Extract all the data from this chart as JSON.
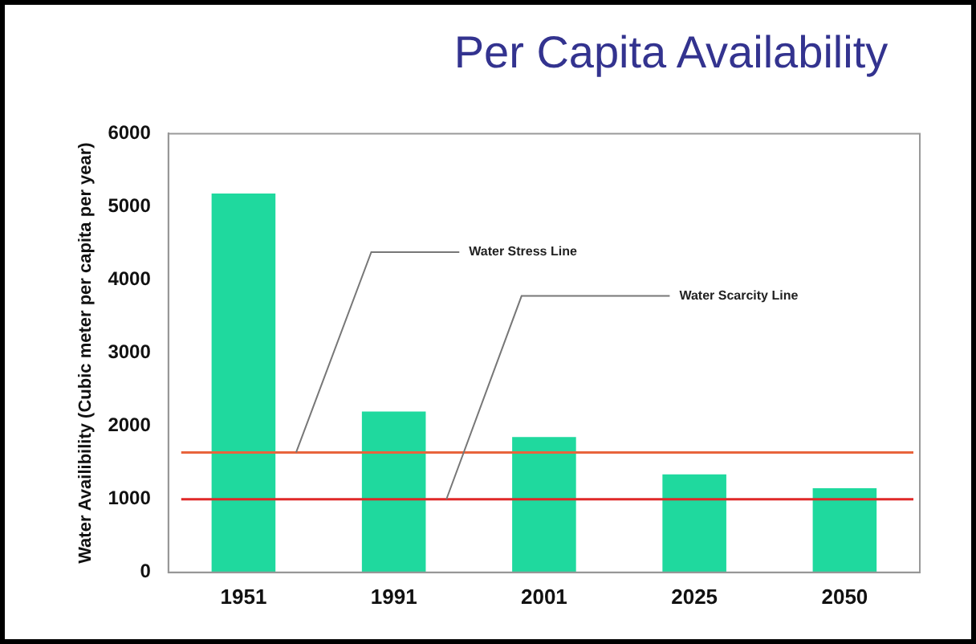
{
  "chart_data": {
    "type": "bar",
    "title": "Per Capita Availability",
    "ylabel": "Water Availibility (Cubic meter per capita per year)",
    "categories": [
      "1951",
      "1991",
      "2001",
      "2025",
      "2050"
    ],
    "values": [
      5180,
      2200,
      1850,
      1340,
      1150
    ],
    "color": "#1fd99e",
    "ylim": [
      0,
      6000
    ],
    "yticks": [
      0,
      1000,
      2000,
      3000,
      4000,
      5000,
      6000
    ],
    "grid": false,
    "legend": false,
    "ref_lines": [
      {
        "axis": "y",
        "value": 1640,
        "label": "Water Stress Line",
        "color": "#e8643c"
      },
      {
        "axis": "y",
        "value": 1000,
        "label": "Water Scarcity Line",
        "color": "#e02828"
      }
    ]
  }
}
